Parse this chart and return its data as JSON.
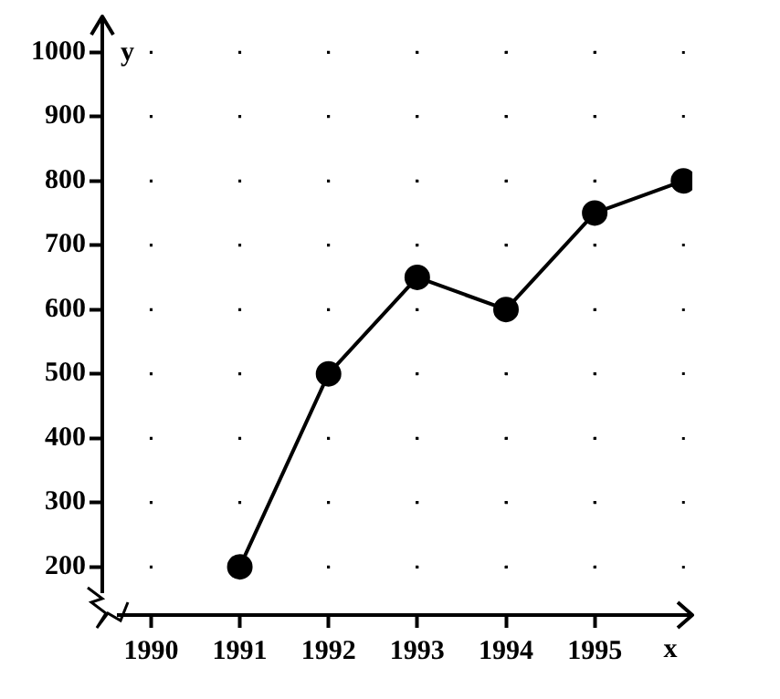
{
  "chart_data": {
    "type": "line",
    "xlabel": "x",
    "ylabel": "y",
    "x": [
      1991,
      1992,
      1993,
      1994,
      1995,
      1996
    ],
    "series": [
      {
        "color": "#000000",
        "values": [
          200,
          500,
          650,
          600,
          750,
          800
        ]
      }
    ],
    "xlim": [
      1989.45,
      1996.1
    ],
    "xticks": [
      1990,
      1991,
      1992,
      1993,
      1994,
      1995
    ],
    "ylim": [
      125,
      1050
    ],
    "yticks": [
      200,
      300,
      400,
      500,
      600,
      700,
      800,
      900,
      1000
    ],
    "grid": true,
    "marker": "circle",
    "line_style": "solid",
    "legend": false
  }
}
